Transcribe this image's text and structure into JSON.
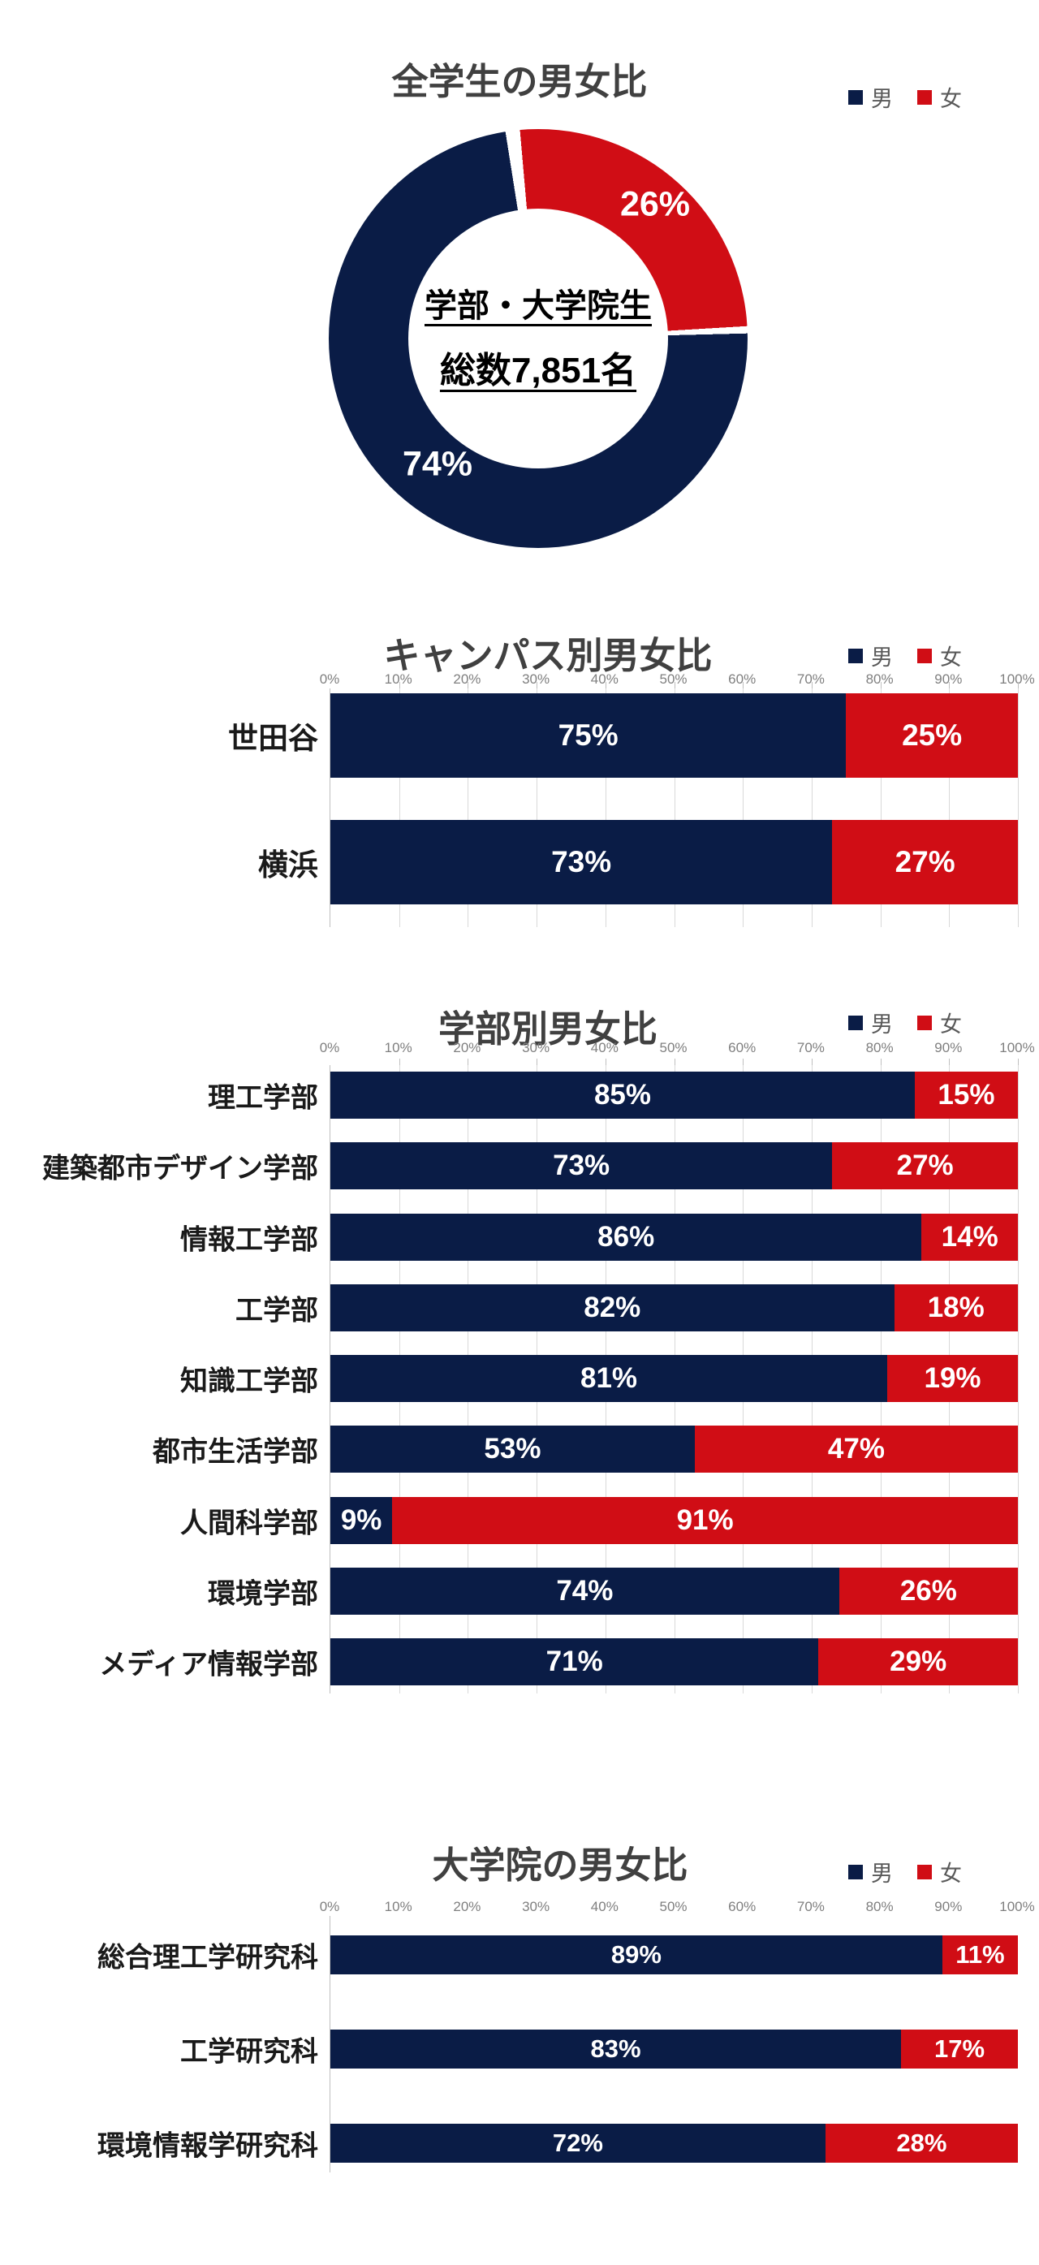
{
  "colors": {
    "male": "#0a1c46",
    "female": "#d00d15",
    "title_text": "#404040",
    "legend_text": "#595959",
    "axis_text": "#7f7f7f",
    "gridline": "#d9d9d9",
    "axis_line": "#bfbfbf",
    "value_text": "#ffffff",
    "category_text": "#1a1a1a"
  },
  "legend": {
    "male_label": "男",
    "female_label": "女"
  },
  "axis_ticks": [
    "0%",
    "10%",
    "20%",
    "30%",
    "40%",
    "50%",
    "60%",
    "70%",
    "80%",
    "90%",
    "100%"
  ],
  "chart_data": [
    {
      "id": "overall",
      "type": "pie",
      "title": "全学生の男女比",
      "legend": [
        "男",
        "女"
      ],
      "legend_position": "top-right",
      "series": [
        {
          "name": "男",
          "value": 74,
          "label": "74%"
        },
        {
          "name": "女",
          "value": 26,
          "label": "26%"
        }
      ],
      "center_text": {
        "line1": "学部・大学院生",
        "line2": "総数7,851名"
      }
    },
    {
      "id": "campus",
      "type": "bar",
      "title": "キャンパス別男女比",
      "stacked": true,
      "orientation": "horizontal",
      "xlim": [
        0,
        100
      ],
      "grid": true,
      "legend": [
        "男",
        "女"
      ],
      "legend_position": "top-right",
      "categories": [
        "世田谷",
        "横浜"
      ],
      "series": [
        {
          "name": "男",
          "values": [
            75,
            73
          ]
        },
        {
          "name": "女",
          "values": [
            25,
            27
          ]
        }
      ]
    },
    {
      "id": "faculty",
      "type": "bar",
      "title": "学部別男女比",
      "stacked": true,
      "orientation": "horizontal",
      "xlim": [
        0,
        100
      ],
      "grid": true,
      "legend": [
        "男",
        "女"
      ],
      "legend_position": "top-right",
      "categories": [
        "理工学部",
        "建築都市デザイン学部",
        "情報工学部",
        "工学部",
        "知識工学部",
        "都市生活学部",
        "人間科学部",
        "環境学部",
        "メディア情報学部"
      ],
      "series": [
        {
          "name": "男",
          "values": [
            85,
            73,
            86,
            82,
            81,
            53,
            9,
            74,
            71
          ]
        },
        {
          "name": "女",
          "values": [
            15,
            27,
            14,
            18,
            19,
            47,
            91,
            26,
            29
          ]
        }
      ]
    },
    {
      "id": "graduate",
      "type": "bar",
      "title": "大学院の男女比",
      "stacked": true,
      "orientation": "horizontal",
      "xlim": [
        0,
        100
      ],
      "grid": false,
      "legend": [
        "男",
        "女"
      ],
      "legend_position": "top-right",
      "categories": [
        "総合理工学研究科",
        "工学研究科",
        "環境情報学研究科"
      ],
      "series": [
        {
          "name": "男",
          "values": [
            89,
            83,
            72
          ]
        },
        {
          "name": "女",
          "values": [
            11,
            17,
            28
          ]
        }
      ]
    }
  ]
}
